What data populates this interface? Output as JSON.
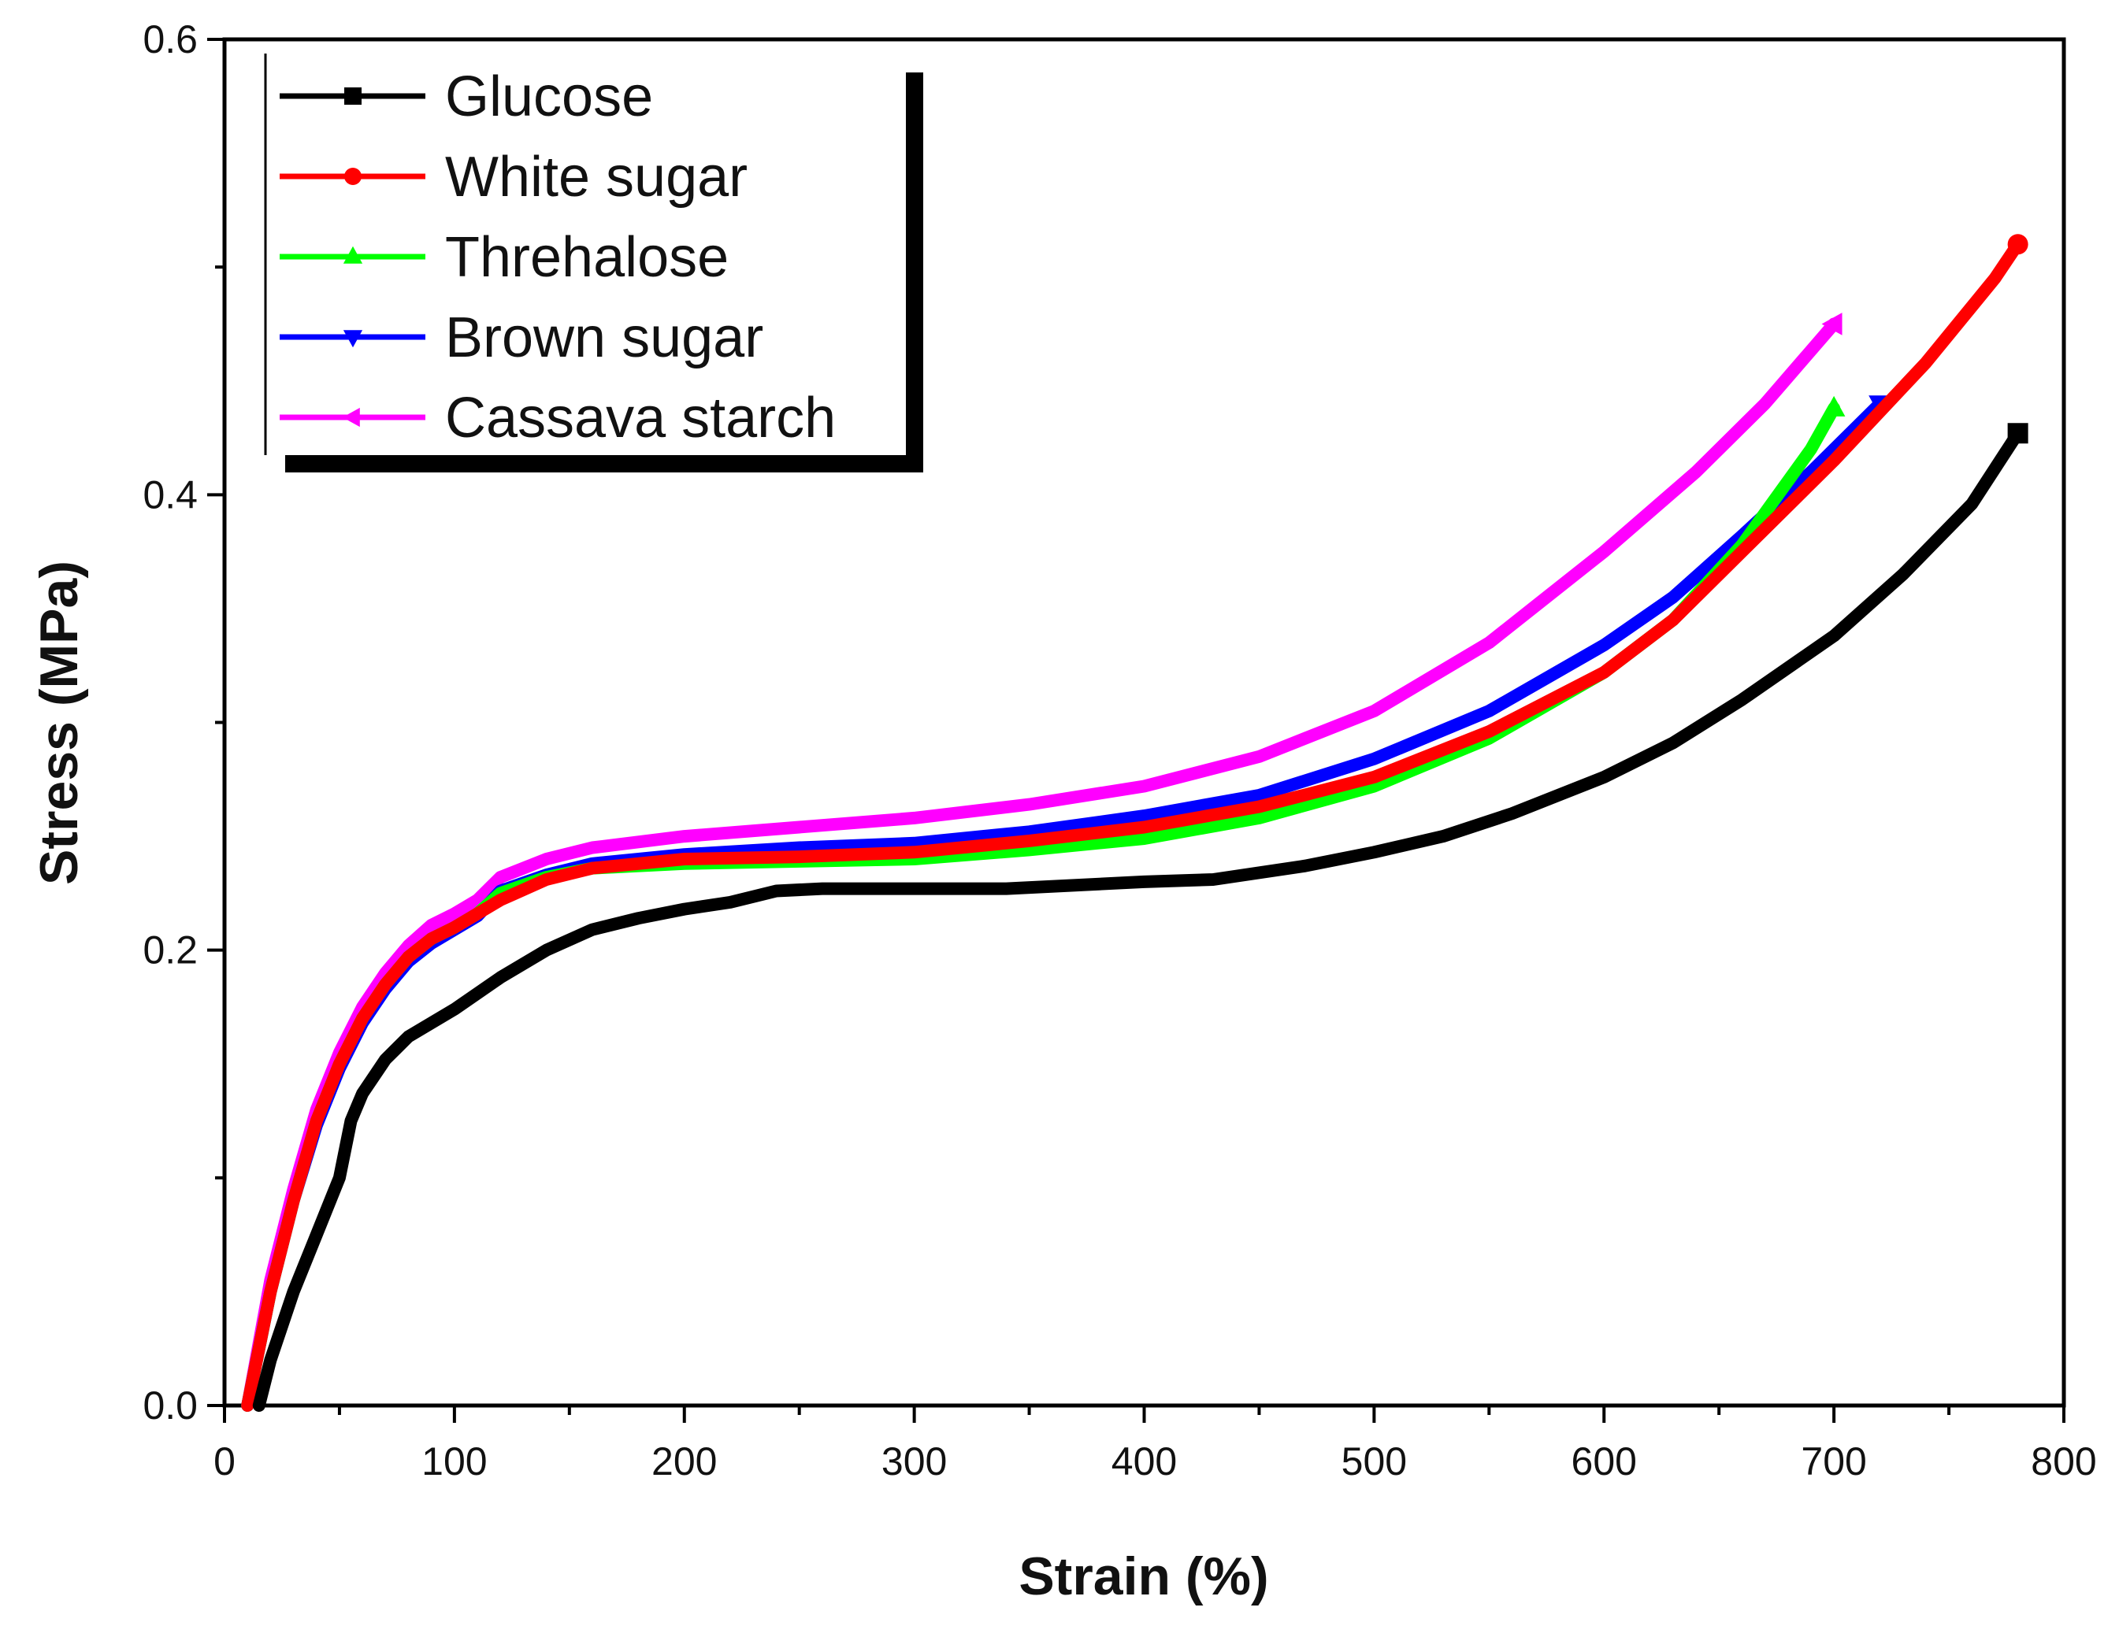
{
  "chart_data": {
    "type": "line",
    "title": "",
    "xlabel": "Strain (%)",
    "ylabel": "Stress (MPa)",
    "xlim": [
      0,
      800
    ],
    "ylim": [
      0,
      0.6
    ],
    "xticks": [
      0,
      100,
      200,
      300,
      400,
      500,
      600,
      700,
      800
    ],
    "xtick_labels": [
      "0",
      "100",
      "200",
      "300",
      "400",
      "500",
      "600",
      "700",
      "800"
    ],
    "yticks": [
      0,
      0.2,
      0.4,
      0.6
    ],
    "ytick_labels": [
      "0.0",
      "0.2",
      "0.4",
      "0.6"
    ],
    "legend_position": "top-left",
    "grid": false,
    "series": [
      {
        "name": "Glucose",
        "color": "#000000",
        "marker": "square",
        "points": [
          [
            15,
            0
          ],
          [
            20,
            0.02
          ],
          [
            30,
            0.05
          ],
          [
            40,
            0.075
          ],
          [
            50,
            0.1
          ],
          [
            55,
            0.125
          ],
          [
            60,
            0.137
          ],
          [
            70,
            0.152
          ],
          [
            80,
            0.162
          ],
          [
            100,
            0.174
          ],
          [
            120,
            0.188
          ],
          [
            140,
            0.2
          ],
          [
            160,
            0.209
          ],
          [
            180,
            0.214
          ],
          [
            200,
            0.218
          ],
          [
            220,
            0.221
          ],
          [
            240,
            0.226
          ],
          [
            260,
            0.227
          ],
          [
            300,
            0.227
          ],
          [
            340,
            0.227
          ],
          [
            400,
            0.23
          ],
          [
            430,
            0.231
          ],
          [
            470,
            0.237
          ],
          [
            500,
            0.243
          ],
          [
            530,
            0.25
          ],
          [
            560,
            0.26
          ],
          [
            600,
            0.276
          ],
          [
            630,
            0.291
          ],
          [
            660,
            0.31
          ],
          [
            700,
            0.338
          ],
          [
            730,
            0.365
          ],
          [
            760,
            0.396
          ],
          [
            780,
            0.427
          ]
        ]
      },
      {
        "name": "White sugar",
        "color": "#ff0000",
        "marker": "circle",
        "points": [
          [
            10,
            0
          ],
          [
            20,
            0.05
          ],
          [
            30,
            0.09
          ],
          [
            40,
            0.125
          ],
          [
            50,
            0.15
          ],
          [
            60,
            0.17
          ],
          [
            70,
            0.185
          ],
          [
            80,
            0.197
          ],
          [
            90,
            0.205
          ],
          [
            100,
            0.21
          ],
          [
            110,
            0.216
          ],
          [
            120,
            0.222
          ],
          [
            140,
            0.231
          ],
          [
            160,
            0.236
          ],
          [
            200,
            0.24
          ],
          [
            250,
            0.241
          ],
          [
            300,
            0.243
          ],
          [
            350,
            0.248
          ],
          [
            400,
            0.254
          ],
          [
            450,
            0.263
          ],
          [
            500,
            0.276
          ],
          [
            550,
            0.296
          ],
          [
            600,
            0.322
          ],
          [
            630,
            0.345
          ],
          [
            660,
            0.375
          ],
          [
            700,
            0.415
          ],
          [
            740,
            0.458
          ],
          [
            770,
            0.495
          ],
          [
            780,
            0.51
          ]
        ]
      },
      {
        "name": "Threhalose",
        "color": "#00ff00",
        "marker": "triangle-up",
        "points": [
          [
            10,
            0
          ],
          [
            20,
            0.05
          ],
          [
            30,
            0.09
          ],
          [
            40,
            0.125
          ],
          [
            50,
            0.15
          ],
          [
            60,
            0.17
          ],
          [
            70,
            0.185
          ],
          [
            80,
            0.197
          ],
          [
            90,
            0.205
          ],
          [
            100,
            0.21
          ],
          [
            110,
            0.216
          ],
          [
            120,
            0.225
          ],
          [
            140,
            0.232
          ],
          [
            160,
            0.236
          ],
          [
            200,
            0.238
          ],
          [
            250,
            0.239
          ],
          [
            300,
            0.24
          ],
          [
            350,
            0.244
          ],
          [
            400,
            0.249
          ],
          [
            450,
            0.258
          ],
          [
            500,
            0.272
          ],
          [
            550,
            0.293
          ],
          [
            600,
            0.322
          ],
          [
            630,
            0.345
          ],
          [
            660,
            0.378
          ],
          [
            690,
            0.42
          ],
          [
            700,
            0.438
          ]
        ]
      },
      {
        "name": "Brown sugar",
        "color": "#0000ff",
        "marker": "triangle-down",
        "points": [
          [
            10,
            0
          ],
          [
            20,
            0.05
          ],
          [
            30,
            0.09
          ],
          [
            40,
            0.123
          ],
          [
            50,
            0.148
          ],
          [
            60,
            0.168
          ],
          [
            70,
            0.183
          ],
          [
            80,
            0.195
          ],
          [
            90,
            0.203
          ],
          [
            100,
            0.209
          ],
          [
            110,
            0.215
          ],
          [
            120,
            0.226
          ],
          [
            140,
            0.233
          ],
          [
            160,
            0.238
          ],
          [
            200,
            0.242
          ],
          [
            250,
            0.245
          ],
          [
            300,
            0.247
          ],
          [
            350,
            0.252
          ],
          [
            400,
            0.259
          ],
          [
            450,
            0.268
          ],
          [
            500,
            0.284
          ],
          [
            550,
            0.305
          ],
          [
            600,
            0.334
          ],
          [
            630,
            0.355
          ],
          [
            660,
            0.382
          ],
          [
            690,
            0.41
          ],
          [
            720,
            0.44
          ]
        ]
      },
      {
        "name": "Cassava starch",
        "color": "#ff00ff",
        "marker": "triangle-left",
        "points": [
          [
            10,
            0
          ],
          [
            20,
            0.055
          ],
          [
            30,
            0.095
          ],
          [
            40,
            0.13
          ],
          [
            50,
            0.155
          ],
          [
            60,
            0.175
          ],
          [
            70,
            0.19
          ],
          [
            80,
            0.202
          ],
          [
            90,
            0.211
          ],
          [
            100,
            0.216
          ],
          [
            110,
            0.222
          ],
          [
            120,
            0.232
          ],
          [
            140,
            0.24
          ],
          [
            160,
            0.245
          ],
          [
            200,
            0.25
          ],
          [
            250,
            0.254
          ],
          [
            300,
            0.258
          ],
          [
            350,
            0.264
          ],
          [
            400,
            0.272
          ],
          [
            450,
            0.285
          ],
          [
            500,
            0.305
          ],
          [
            550,
            0.335
          ],
          [
            600,
            0.375
          ],
          [
            640,
            0.41
          ],
          [
            670,
            0.44
          ],
          [
            700,
            0.475
          ]
        ]
      }
    ]
  }
}
